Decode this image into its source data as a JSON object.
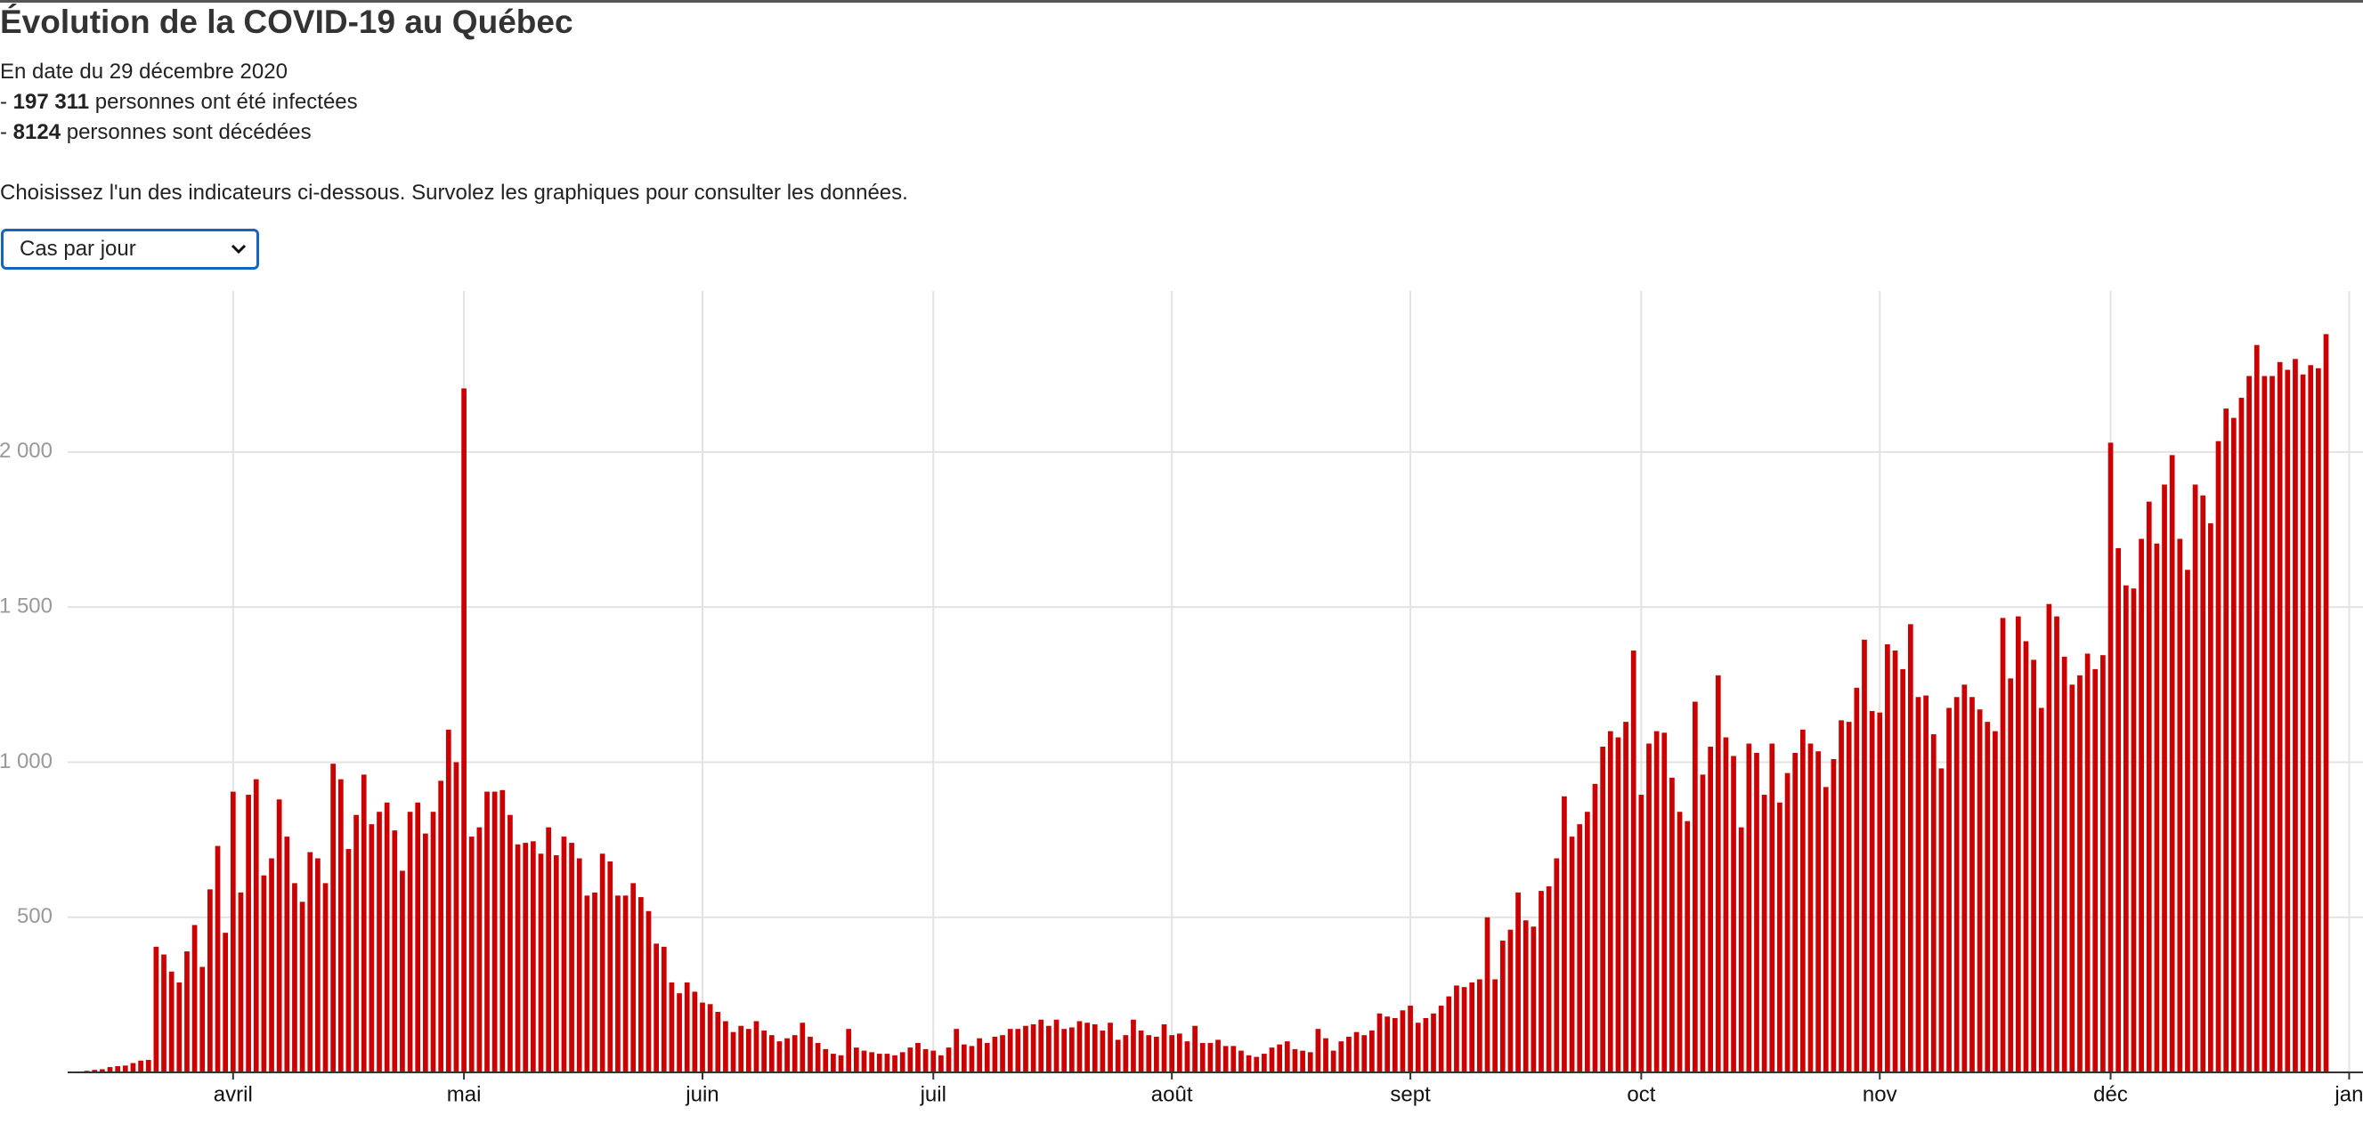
{
  "page": {
    "title": "Évolution de la COVID-19 au Québec",
    "date_line": "En date du 29 décembre 2020",
    "bullet": "-",
    "infected_count": "197 311",
    "infected_text": "personnes ont été infectées",
    "deaths_count": "8124",
    "deaths_text": "personnes sont décédées",
    "instructions": "Choisissez l'un des indicateurs ci-dessous. Survolez les graphiques pour consulter les données.",
    "selected_option": "Cas par jour"
  },
  "chart_data": {
    "type": "bar",
    "color": "#cc0000",
    "grid": true,
    "x": [
      71,
      72,
      73,
      74,
      75,
      76,
      77,
      78,
      79,
      80,
      81,
      82,
      83,
      84,
      85,
      86,
      87,
      88,
      89,
      90,
      91,
      92,
      93,
      94,
      95,
      96,
      97,
      98,
      99,
      100,
      101,
      102,
      103,
      104,
      105,
      106,
      107,
      108,
      109,
      110,
      111,
      112,
      113,
      114,
      115,
      116,
      117,
      118,
      119,
      120,
      121,
      122,
      123,
      124,
      125,
      126,
      127,
      128,
      129,
      130,
      131,
      132,
      133,
      134,
      135,
      136,
      137,
      138,
      139,
      140,
      141,
      142,
      143,
      144,
      145,
      146,
      147,
      148,
      149,
      150,
      151,
      152,
      153,
      154,
      155,
      156,
      157,
      158,
      159,
      160,
      161,
      162,
      163,
      164,
      165,
      166,
      167,
      168,
      169,
      170,
      171,
      172,
      173,
      174,
      175,
      176,
      177,
      178,
      179,
      180,
      181,
      182,
      183,
      184,
      185,
      186,
      187,
      188,
      189,
      190,
      191,
      192,
      193,
      194,
      195,
      196,
      197,
      198,
      199,
      200,
      201,
      202,
      203,
      204,
      205,
      206,
      207,
      208,
      209,
      210,
      211,
      212,
      213,
      214,
      215,
      216,
      217,
      218,
      219,
      220,
      221,
      222,
      223,
      224,
      225,
      226,
      227,
      228,
      229,
      230,
      231,
      232,
      233,
      234,
      235,
      236,
      237,
      238,
      239,
      240,
      241,
      242,
      243,
      244,
      245,
      246,
      247,
      248,
      249,
      250,
      251,
      252,
      253,
      254,
      255,
      256,
      257,
      258,
      259,
      260,
      261,
      262,
      263,
      264,
      265,
      266,
      267,
      268,
      269,
      270,
      271,
      272,
      273,
      274,
      275,
      276,
      277,
      278,
      279,
      280,
      281,
      282,
      283,
      284,
      285,
      286,
      287,
      288,
      289,
      290,
      291,
      292,
      293,
      294,
      295,
      296,
      297,
      298,
      299,
      300,
      301,
      302,
      303,
      304,
      305,
      306,
      307,
      308,
      309,
      310,
      311,
      312,
      313,
      314,
      315,
      316,
      317,
      318,
      319,
      320,
      321,
      322,
      323,
      324,
      325,
      326,
      327,
      328,
      329,
      330,
      331,
      332,
      333,
      334,
      335,
      336,
      337,
      338,
      339,
      340,
      341,
      342,
      343,
      344,
      345,
      346,
      347,
      348,
      349,
      350,
      351,
      352,
      353,
      354,
      355,
      356,
      357,
      358,
      359,
      360,
      361,
      362,
      363,
      364
    ],
    "values": [
      2,
      3,
      5,
      8,
      10,
      17,
      20,
      22,
      30,
      38,
      40,
      405,
      380,
      325,
      290,
      390,
      475,
      340,
      590,
      730,
      450,
      905,
      580,
      895,
      945,
      635,
      690,
      880,
      760,
      610,
      550,
      710,
      690,
      610,
      995,
      945,
      720,
      830,
      960,
      800,
      840,
      870,
      780,
      650,
      840,
      870,
      770,
      840,
      940,
      1105,
      1000,
      2205,
      760,
      790,
      905,
      905,
      910,
      830,
      735,
      740,
      745,
      705,
      790,
      700,
      760,
      740,
      690,
      570,
      580,
      705,
      680,
      570,
      570,
      610,
      565,
      520,
      415,
      405,
      290,
      255,
      290,
      260,
      225,
      220,
      195,
      165,
      130,
      150,
      140,
      165,
      135,
      120,
      100,
      110,
      120,
      160,
      115,
      95,
      75,
      60,
      55,
      140,
      80,
      70,
      65,
      60,
      60,
      55,
      65,
      80,
      95,
      75,
      70,
      55,
      80,
      140,
      90,
      85,
      110,
      95,
      115,
      120,
      140,
      140,
      150,
      155,
      170,
      150,
      170,
      140,
      145,
      165,
      160,
      155,
      135,
      160,
      105,
      120,
      170,
      135,
      120,
      115,
      155,
      120,
      125,
      100,
      150,
      95,
      95,
      105,
      85,
      85,
      70,
      55,
      50,
      60,
      80,
      90,
      100,
      75,
      70,
      65,
      140,
      110,
      70,
      100,
      115,
      130,
      120,
      135,
      190,
      180,
      175,
      200,
      215,
      160,
      175,
      190,
      215,
      245,
      280,
      275,
      290,
      300,
      500,
      300,
      425,
      460,
      580,
      490,
      470,
      585,
      600,
      690,
      890,
      760,
      800,
      840,
      930,
      1050,
      1100,
      1080,
      1130,
      1360,
      895,
      1060,
      1100,
      1095,
      950,
      840,
      810,
      1195,
      960,
      1050,
      1280,
      1080,
      1020,
      790,
      1060,
      1030,
      895,
      1060,
      870,
      965,
      1030,
      1105,
      1060,
      1035,
      920,
      1010,
      1135,
      1130,
      1240,
      1395,
      1165,
      1160,
      1380,
      1360,
      1300,
      1445,
      1210,
      1215,
      1090,
      980,
      1175,
      1210,
      1250,
      1210,
      1170,
      1130,
      1100,
      1465,
      1270,
      1470,
      1390,
      1330,
      1175,
      1510,
      1470,
      1340,
      1250,
      1280,
      1350,
      1300,
      1345,
      2030,
      1690,
      1570,
      1560,
      1720,
      1840,
      1705,
      1895,
      1990,
      1720,
      1620,
      1895,
      1860,
      1770,
      2035,
      2140,
      2110,
      2175,
      2245,
      2345,
      2245,
      2245,
      2290,
      2265,
      2300,
      2250,
      2280,
      2270,
      2380
    ],
    "xlim": [
      70.5,
      368.8
    ],
    "xticks": [
      {
        "value": 92,
        "label": "avril"
      },
      {
        "value": 122,
        "label": "mai"
      },
      {
        "value": 153,
        "label": "juin"
      },
      {
        "value": 183,
        "label": "juil"
      },
      {
        "value": 214,
        "label": "août"
      },
      {
        "value": 245,
        "label": "sept"
      },
      {
        "value": 275,
        "label": "oct"
      },
      {
        "value": 306,
        "label": "nov"
      },
      {
        "value": 336,
        "label": "déc"
      },
      {
        "value": 367,
        "label": "jan"
      }
    ],
    "ylim": [
      0,
      2519
    ],
    "yticks": [
      500,
      {
        "value": 1000,
        "label": "1 000"
      },
      {
        "value": 1500,
        "label": "1 500"
      },
      {
        "value": 2000,
        "label": "2 000"
      }
    ]
  }
}
